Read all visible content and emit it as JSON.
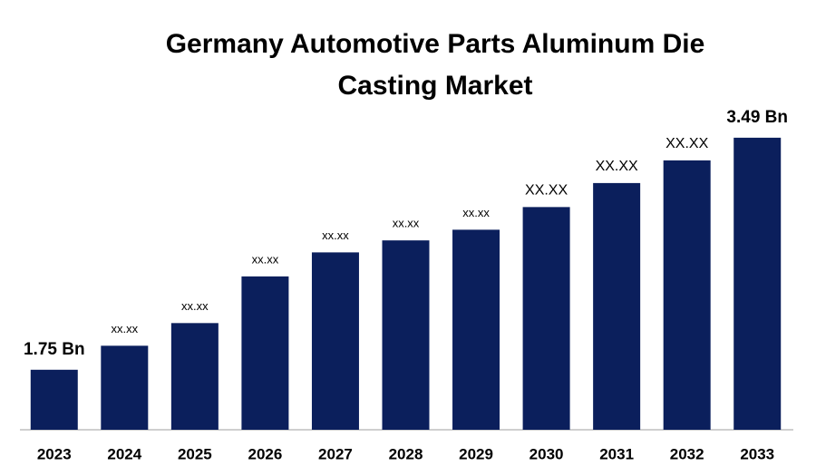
{
  "chart_data": {
    "type": "bar",
    "title": "Germany Automotive Parts Aluminum Die Casting Market",
    "categories": [
      "2023",
      "2024",
      "2025",
      "2026",
      "2027",
      "2028",
      "2029",
      "2030",
      "2031",
      "2032",
      "2033"
    ],
    "values": [
      1.75,
      1.93,
      2.1,
      2.45,
      2.63,
      2.72,
      2.8,
      2.97,
      3.15,
      3.32,
      3.49
    ],
    "value_labels": [
      "1.75 Bn",
      "xx.xx",
      "xx.xx",
      "xx.xx",
      "xx.xx",
      "xx.xx",
      "xx.xx",
      "XX.XX",
      "XX.XX",
      "XX.XX",
      "3.49 Bn"
    ],
    "color": "#0b1f5c",
    "ylim": [
      1.3,
      3.7
    ]
  }
}
